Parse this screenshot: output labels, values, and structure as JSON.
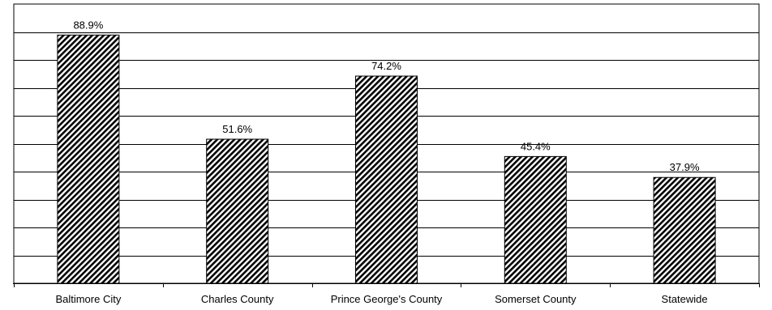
{
  "chart_data": {
    "type": "bar",
    "categories": [
      "Baltimore City",
      "Charles County",
      "Prince George's County",
      "Somerset County",
      "Statewide"
    ],
    "values": [
      88.9,
      51.6,
      74.2,
      45.4,
      37.9
    ],
    "value_labels": [
      "88.9%",
      "51.6%",
      "74.2%",
      "45.4%",
      "37.9%"
    ],
    "title": "",
    "xlabel": "",
    "ylabel": "",
    "ylim": [
      0,
      100
    ],
    "grid": true,
    "bar_fill": "diagonal hatch",
    "colors": {
      "bar_stroke": "#000000",
      "hatch": "#000000",
      "grid": "#000000",
      "background": "#ffffff"
    }
  }
}
